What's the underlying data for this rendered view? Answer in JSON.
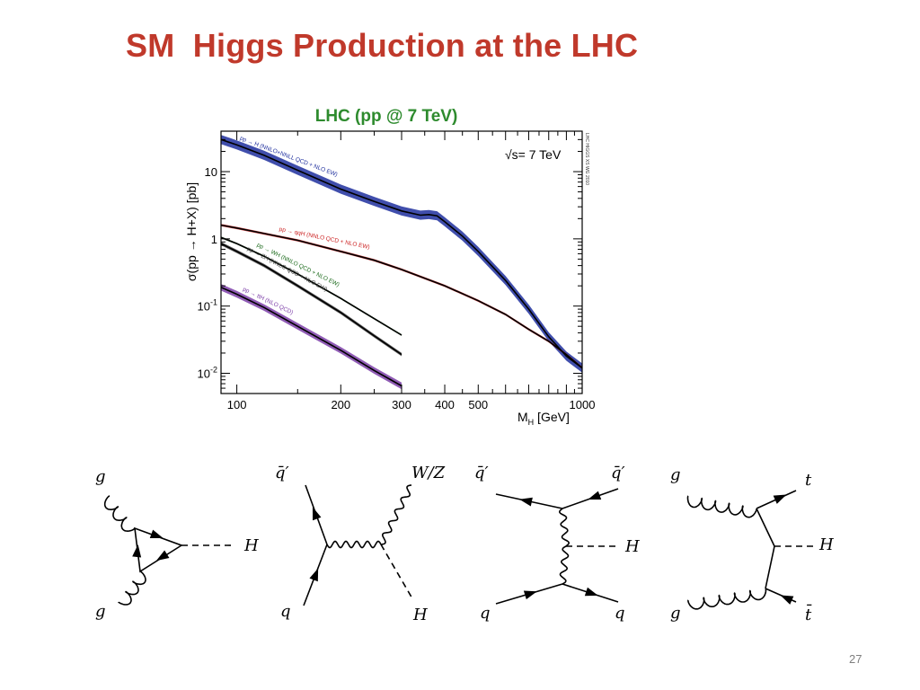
{
  "slide": {
    "title": "SM  Higgs Production at the LHC",
    "page_number": "27"
  },
  "chart_data": {
    "type": "line",
    "title": "LHC  (pp @ 7 TeV)",
    "annotation": "√s= 7 TeV",
    "side_label": "LHC HIGGS XS WG 2010",
    "xlabel": "M_H [GeV]",
    "ylabel": "σ(pp → H+X) [pb]",
    "x_scale": "log",
    "y_scale": "log",
    "xlim": [
      90,
      1000
    ],
    "ylim": [
      0.005,
      40
    ],
    "x_ticks": [
      {
        "value": 100,
        "label": "100"
      },
      {
        "value": 200,
        "label": "200"
      },
      {
        "value": 300,
        "label": "300"
      },
      {
        "value": 400,
        "label": "400"
      },
      {
        "value": 500,
        "label": "500"
      },
      {
        "value": 1000,
        "label": "1000"
      }
    ],
    "y_ticks": [
      {
        "value": 0.01,
        "label": "10",
        "exp": "-2"
      },
      {
        "value": 0.1,
        "label": "10",
        "exp": "-1"
      },
      {
        "value": 1,
        "label": "1",
        "exp": ""
      },
      {
        "value": 10,
        "label": "10",
        "exp": ""
      }
    ],
    "series": [
      {
        "name": "pp → H (NNLO+NNLL QCD + NLO EW)",
        "color": "#1f2f9e",
        "band": 0.17,
        "x": [
          90,
          100,
          120,
          150,
          200,
          250,
          300,
          340,
          360,
          380,
          400,
          450,
          500,
          600,
          700,
          800,
          900,
          1000
        ],
        "y": [
          30,
          25,
          17.5,
          10.5,
          5.5,
          3.6,
          2.6,
          2.25,
          2.3,
          2.2,
          1.8,
          1.1,
          0.65,
          0.24,
          0.09,
          0.035,
          0.018,
          0.012
        ],
        "label_at": 100
      },
      {
        "name": "pp → qqH (NNLO QCD + NLO EW)",
        "color": "#cc2222",
        "band": 0.04,
        "x": [
          90,
          100,
          120,
          150,
          200,
          250,
          300,
          400,
          500,
          600,
          700,
          800,
          900,
          1000
        ],
        "y": [
          1.6,
          1.45,
          1.2,
          0.95,
          0.65,
          0.48,
          0.35,
          0.2,
          0.12,
          0.075,
          0.045,
          0.03,
          0.019,
          0.012
        ],
        "label_at": 130
      },
      {
        "name": "pp → WH (NNLO QCD + NLO EW)",
        "color": "#1d6b1d",
        "band": 0.03,
        "x": [
          90,
          100,
          120,
          150,
          200,
          250,
          300
        ],
        "y": [
          1.05,
          0.85,
          0.55,
          0.3,
          0.13,
          0.065,
          0.037
        ],
        "label_at": 112
      },
      {
        "name": "pp → ZH (NNLO QCD + NLO EW)",
        "color": "#444444",
        "band": 0.06,
        "x": [
          90,
          100,
          120,
          150,
          200,
          250,
          300
        ],
        "y": [
          0.85,
          0.65,
          0.4,
          0.2,
          0.08,
          0.036,
          0.019
        ],
        "label_at": 105
      },
      {
        "name": "pp → ttH (NLO QCD)",
        "color": "#7d3fa8",
        "band": 0.12,
        "x": [
          90,
          100,
          120,
          150,
          200,
          250,
          300
        ],
        "y": [
          0.19,
          0.15,
          0.095,
          0.05,
          0.022,
          0.011,
          0.0065
        ],
        "label_at": 102
      }
    ],
    "legend_placement": "none",
    "grid": false
  },
  "diagrams": {
    "ggf": {
      "g_top": "g",
      "g_bottom": "g",
      "H": "H"
    },
    "vh": {
      "qbar": "q̄′",
      "q": "q",
      "WZ": "W/Z",
      "H": "H"
    },
    "vbf": {
      "qbar_left": "q̄′",
      "qbar_right": "q̄′",
      "q_left": "q",
      "q_right": "q",
      "H": "H"
    },
    "tth": {
      "g_top": "g",
      "g_bottom": "g",
      "t": "t",
      "tbar": "t̄",
      "H": "H"
    }
  }
}
